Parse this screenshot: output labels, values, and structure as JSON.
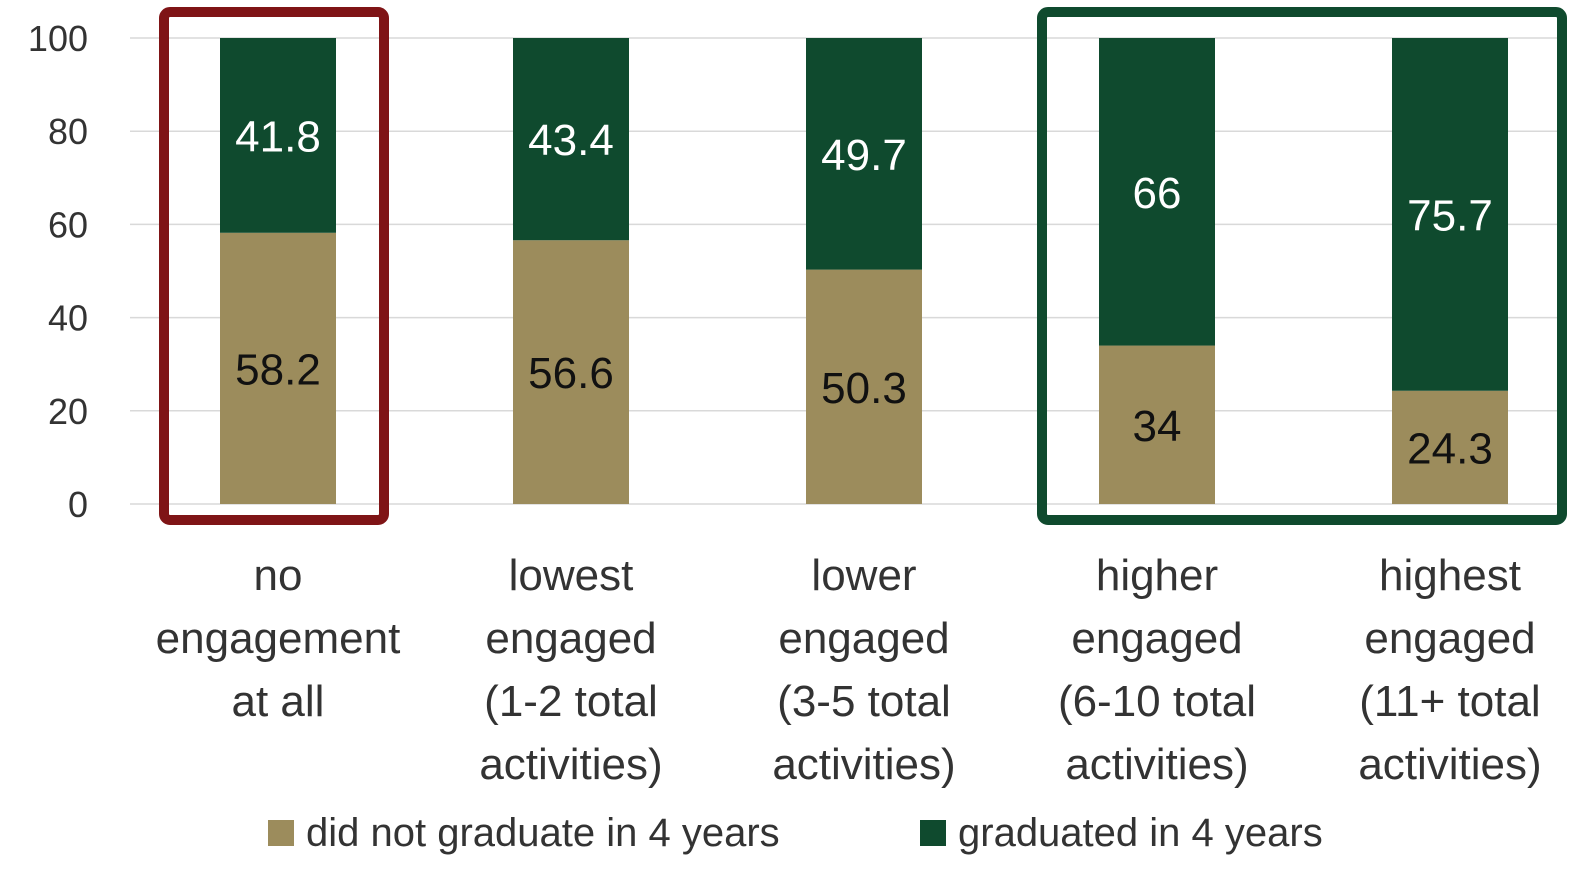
{
  "chart_data": {
    "type": "bar",
    "stacked": true,
    "categories": [
      [
        "no",
        "engagement",
        "at all"
      ],
      [
        "lowest",
        "engaged",
        "(1-2 total",
        "activities)"
      ],
      [
        "lower",
        "engaged",
        "(3-5 total",
        "activities)"
      ],
      [
        "higher",
        "engaged",
        "(6-10 total",
        "activities)"
      ],
      [
        "highest",
        "engaged",
        "(11+ total",
        "activities)"
      ]
    ],
    "series": [
      {
        "name": "did not graduate in 4 years",
        "values": [
          58.2,
          56.6,
          50.3,
          34,
          24.3
        ],
        "color": "#9c8c5c",
        "label_color": "#111111"
      },
      {
        "name": "graduated in 4 years",
        "values": [
          41.8,
          43.4,
          49.7,
          66,
          75.7
        ],
        "color": "#0f4a2e",
        "label_color": "#ffffff"
      }
    ],
    "ylim": [
      0,
      100
    ],
    "yticks": [
      0,
      20,
      40,
      60,
      80,
      100
    ],
    "grid": true,
    "legend_position": "bottom",
    "highlights": [
      {
        "categories": [
          0
        ],
        "color": "#7f1416"
      },
      {
        "categories": [
          3,
          4
        ],
        "color": "#0f4a2e"
      }
    ]
  }
}
